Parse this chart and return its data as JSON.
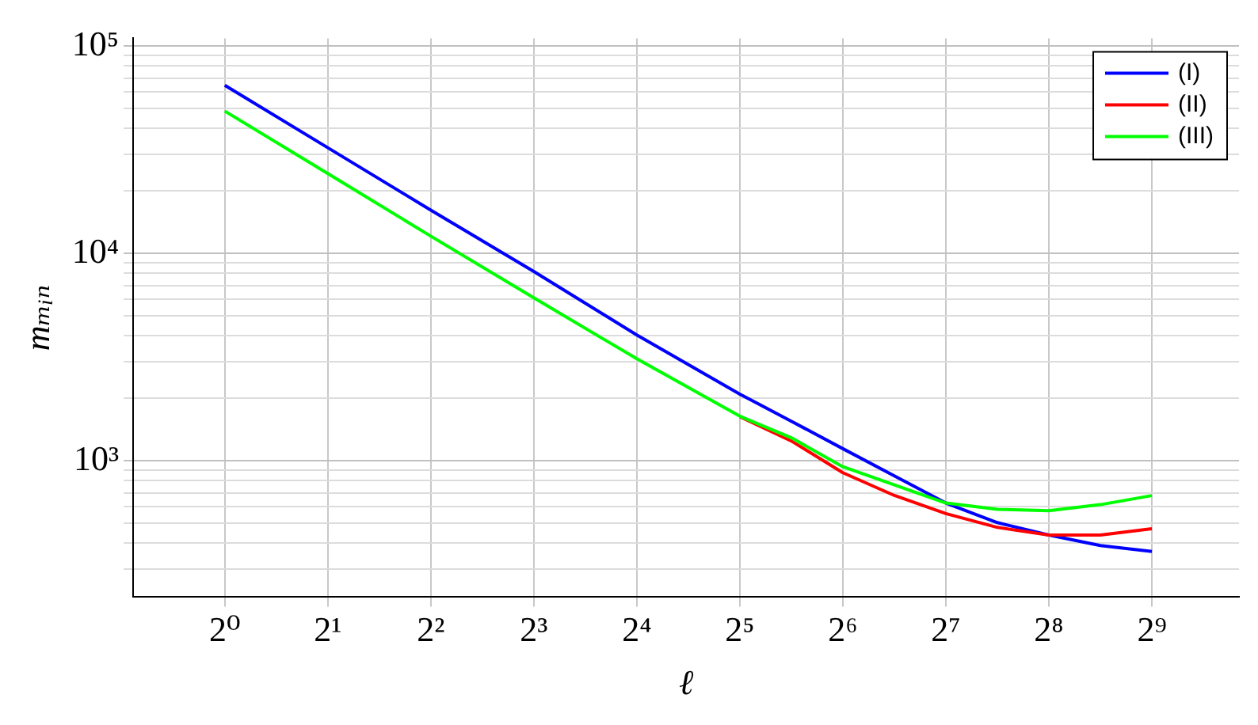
{
  "chart_data": {
    "type": "line",
    "xlabel": "ℓ",
    "ylabel": "mₘᵢₙ",
    "log": "xy",
    "grid": true,
    "legend": "top right",
    "marker": "none",
    "line_style": "solid",
    "xlim": [
      0.54,
      920
    ],
    "ylim": [
      220,
      108800
    ],
    "xticks": [
      {
        "value": 1,
        "label": "2⁰"
      },
      {
        "value": 2,
        "label": "2¹"
      },
      {
        "value": 4,
        "label": "2²"
      },
      {
        "value": 8,
        "label": "2³"
      },
      {
        "value": 16,
        "label": "2⁴"
      },
      {
        "value": 32,
        "label": "2⁵"
      },
      {
        "value": 64,
        "label": "2⁶"
      },
      {
        "value": 128,
        "label": "2⁷"
      },
      {
        "value": 256,
        "label": "2⁸"
      },
      {
        "value": 512,
        "label": "2⁹"
      }
    ],
    "yticks": [
      {
        "value": 300,
        "label": null
      },
      {
        "value": 400,
        "label": null
      },
      {
        "value": 500,
        "label": null
      },
      {
        "value": 600,
        "label": null
      },
      {
        "value": 700,
        "label": null
      },
      {
        "value": 800,
        "label": null
      },
      {
        "value": 900,
        "label": null
      },
      {
        "value": 1000,
        "label": "10³"
      },
      {
        "value": 2000,
        "label": null
      },
      {
        "value": 3000,
        "label": null
      },
      {
        "value": 4000,
        "label": null
      },
      {
        "value": 5000,
        "label": null
      },
      {
        "value": 6000,
        "label": null
      },
      {
        "value": 7000,
        "label": null
      },
      {
        "value": 8000,
        "label": null
      },
      {
        "value": 9000,
        "label": null
      },
      {
        "value": 10000,
        "label": "10⁴"
      },
      {
        "value": 20000,
        "label": null
      },
      {
        "value": 30000,
        "label": null
      },
      {
        "value": 40000,
        "label": null
      },
      {
        "value": 50000,
        "label": null
      },
      {
        "value": 60000,
        "label": null
      },
      {
        "value": 70000,
        "label": null
      },
      {
        "value": 80000,
        "label": null
      },
      {
        "value": 90000,
        "label": null
      },
      {
        "value": 100000,
        "label": "10⁵"
      }
    ],
    "x": [
      1,
      2,
      4,
      8,
      16,
      32,
      45.25,
      64,
      90.5,
      128,
      181,
      256,
      362,
      512
    ],
    "series": [
      {
        "name": "(I)",
        "color": "#0000ff",
        "values": [
          64600,
          32300,
          16150,
          8170,
          4040,
          2095,
          1550,
          1143,
          845,
          625,
          503,
          438,
          390,
          365
        ]
      },
      {
        "name": "(II)",
        "color": "#ff0000",
        "values": [
          null,
          null,
          null,
          null,
          null,
          1630,
          1245,
          875,
          680,
          556,
          477,
          438,
          438,
          470
        ]
      },
      {
        "name": "(III)",
        "color": "#00ff00",
        "values": [
          48500,
          24250,
          12100,
          6100,
          3100,
          1640,
          1290,
          935,
          764,
          625,
          583,
          574,
          614,
          679
        ]
      }
    ]
  }
}
